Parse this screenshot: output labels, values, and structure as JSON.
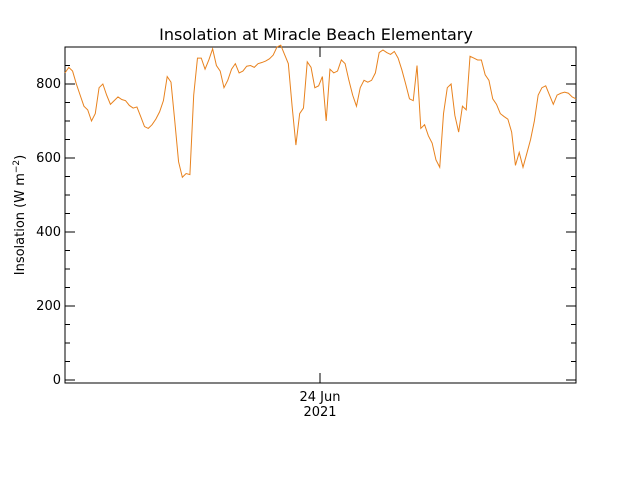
{
  "chart_data": {
    "type": "line",
    "title": "Insolation at Miracle Beach Elementary",
    "ylabel_text": "Insolation (W m",
    "ylabel_sup": "−2",
    "ylabel_close": ")",
    "xlabel": "",
    "ylim": [
      0,
      900
    ],
    "y_ticks": [
      0,
      200,
      400,
      600,
      800
    ],
    "x_tick_labels": [
      {
        "line1": "24 Jun",
        "line2": "2021"
      }
    ],
    "grid": false,
    "line_color": "#e8821e",
    "series": [
      {
        "values": [
          830,
          845,
          835,
          800,
          770,
          740,
          730,
          700,
          720,
          790,
          800,
          770,
          745,
          755,
          765,
          758,
          755,
          742,
          735,
          738,
          712,
          685,
          680,
          690,
          705,
          725,
          755,
          820,
          805,
          700,
          590,
          548,
          558,
          555,
          770,
          870,
          870,
          840,
          865,
          895,
          850,
          835,
          790,
          810,
          840,
          855,
          830,
          835,
          848,
          850,
          845,
          855,
          858,
          862,
          868,
          878,
          900,
          905,
          880,
          855,
          740,
          635,
          720,
          735,
          860,
          845,
          790,
          795,
          820,
          700,
          840,
          830,
          835,
          865,
          855,
          810,
          770,
          740,
          790,
          810,
          805,
          810,
          830,
          885,
          892,
          885,
          880,
          888,
          870,
          838,
          800,
          760,
          755,
          850,
          680,
          690,
          660,
          640,
          595,
          575,
          720,
          790,
          800,
          715,
          670,
          740,
          730,
          875,
          870,
          865,
          865,
          825,
          810,
          760,
          745,
          720,
          712,
          705,
          670,
          580,
          615,
          575,
          612,
          650,
          700,
          770,
          790,
          795,
          770,
          745,
          770,
          775,
          778,
          775,
          765,
          760
        ]
      }
    ]
  }
}
